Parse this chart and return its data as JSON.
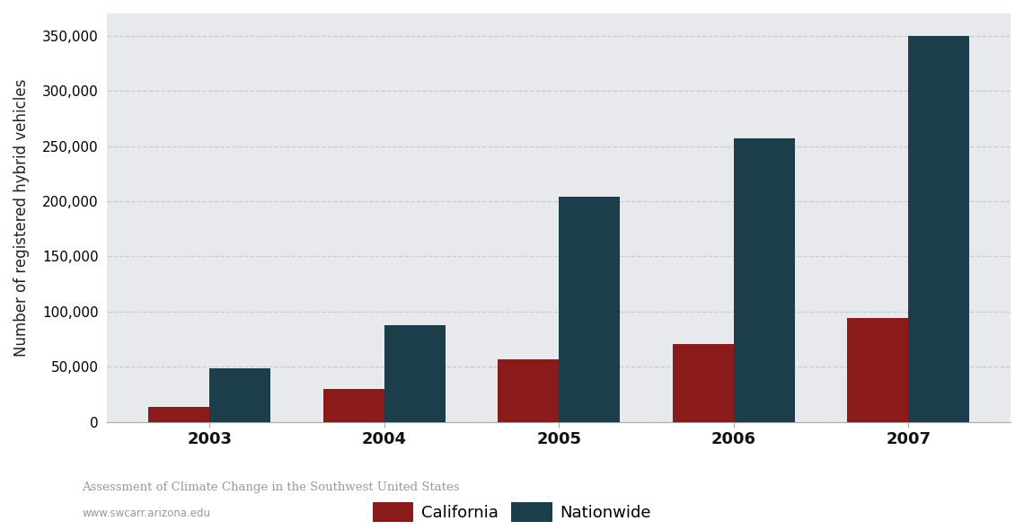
{
  "years": [
    "2003",
    "2004",
    "2005",
    "2006",
    "2007"
  ],
  "california": [
    14000,
    30000,
    57000,
    71000,
    94000
  ],
  "nationwide": [
    49000,
    88000,
    204000,
    257000,
    350000
  ],
  "california_color": "#8B1A1A",
  "nationwide_color": "#1C3D4A",
  "ylabel": "Number of registered hybrid vehicles",
  "legend_california": "California",
  "legend_nationwide": "Nationwide",
  "ylim": [
    0,
    370000
  ],
  "yticks": [
    0,
    50000,
    100000,
    150000,
    200000,
    250000,
    300000,
    350000
  ],
  "plot_bg_color": "#E8E9ED",
  "figure_bg_color": "#FFFFFF",
  "footer_text": "Assessment of Climate Change in the Southwest United States",
  "url_text": "www.swcarr.arizona.edu",
  "bar_width": 0.35
}
